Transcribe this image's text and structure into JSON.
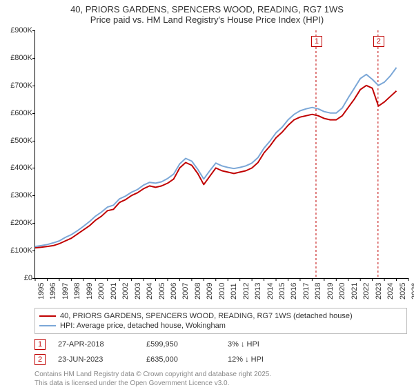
{
  "title": "40, PRIORS GARDENS, SPENCERS WOOD, READING, RG7 1WS",
  "subtitle": "Price paid vs. HM Land Registry's House Price Index (HPI)",
  "chart": {
    "type": "line",
    "background_color": "#ffffff",
    "axis_color": "#000000",
    "tick_font_size": 11,
    "title_font_size": 13,
    "xlim": [
      1995,
      2026
    ],
    "ylim": [
      0,
      900000
    ],
    "yticks": [
      0,
      100000,
      200000,
      300000,
      400000,
      500000,
      600000,
      700000,
      800000,
      900000
    ],
    "ytick_labels": [
      "£0",
      "£100K",
      "£200K",
      "£300K",
      "£400K",
      "£500K",
      "£600K",
      "£700K",
      "£800K",
      "£900K"
    ],
    "xticks": [
      1995,
      1996,
      1997,
      1998,
      1999,
      2000,
      2001,
      2002,
      2003,
      2004,
      2005,
      2006,
      2007,
      2008,
      2009,
      2010,
      2011,
      2012,
      2013,
      2014,
      2015,
      2016,
      2017,
      2018,
      2019,
      2020,
      2021,
      2022,
      2023,
      2024,
      2025,
      2026
    ],
    "series": [
      {
        "id": "price_paid",
        "label": "40, PRIORS GARDENS, SPENCERS WOOD, READING, RG7 1WS (detached house)",
        "color": "#c00000",
        "line_width": 2,
        "x": [
          1995,
          1995.5,
          1996,
          1996.5,
          1997,
          1997.5,
          1998,
          1998.5,
          1999,
          1999.5,
          2000,
          2000.5,
          2001,
          2001.5,
          2002,
          2002.5,
          2003,
          2003.5,
          2004,
          2004.5,
          2005,
          2005.5,
          2006,
          2006.5,
          2007,
          2007.5,
          2008,
          2008.5,
          2009,
          2009.5,
          2010,
          2010.5,
          2011,
          2011.5,
          2012,
          2012.5,
          2013,
          2013.5,
          2014,
          2014.5,
          2015,
          2015.5,
          2016,
          2016.5,
          2017,
          2017.5,
          2018,
          2018.5,
          2019,
          2019.5,
          2020,
          2020.5,
          2021,
          2021.5,
          2022,
          2022.5,
          2023,
          2023.5,
          2024,
          2024.5,
          2025
        ],
        "y": [
          110000,
          112000,
          115000,
          118000,
          125000,
          135000,
          145000,
          160000,
          175000,
          190000,
          210000,
          225000,
          245000,
          250000,
          275000,
          285000,
          300000,
          310000,
          325000,
          335000,
          330000,
          335000,
          345000,
          360000,
          400000,
          420000,
          410000,
          380000,
          340000,
          370000,
          400000,
          390000,
          385000,
          380000,
          385000,
          390000,
          400000,
          420000,
          455000,
          480000,
          510000,
          530000,
          555000,
          575000,
          585000,
          590000,
          595000,
          590000,
          580000,
          575000,
          575000,
          590000,
          620000,
          650000,
          685000,
          700000,
          690000,
          625000,
          640000,
          660000,
          680000
        ]
      },
      {
        "id": "hpi",
        "label": "HPI: Average price, detached house, Wokingham",
        "color": "#7ba7d7",
        "line_width": 2,
        "x": [
          1995,
          1995.5,
          1996,
          1996.5,
          1997,
          1997.5,
          1998,
          1998.5,
          1999,
          1999.5,
          2000,
          2000.5,
          2001,
          2001.5,
          2002,
          2002.5,
          2003,
          2003.5,
          2004,
          2004.5,
          2005,
          2005.5,
          2006,
          2006.5,
          2007,
          2007.5,
          2008,
          2008.5,
          2009,
          2009.5,
          2010,
          2010.5,
          2011,
          2011.5,
          2012,
          2012.5,
          2013,
          2013.5,
          2014,
          2014.5,
          2015,
          2015.5,
          2016,
          2016.5,
          2017,
          2017.5,
          2018,
          2018.5,
          2019,
          2019.5,
          2020,
          2020.5,
          2021,
          2021.5,
          2022,
          2022.5,
          2023,
          2023.5,
          2024,
          2024.5,
          2025
        ],
        "y": [
          115000,
          118000,
          122000,
          128000,
          135000,
          148000,
          158000,
          172000,
          188000,
          205000,
          225000,
          240000,
          258000,
          265000,
          288000,
          298000,
          312000,
          322000,
          338000,
          348000,
          345000,
          350000,
          362000,
          378000,
          415000,
          435000,
          425000,
          395000,
          360000,
          390000,
          418000,
          408000,
          402000,
          398000,
          402000,
          408000,
          418000,
          438000,
          472000,
          498000,
          528000,
          548000,
          575000,
          595000,
          608000,
          615000,
          620000,
          615000,
          605000,
          600000,
          600000,
          618000,
          655000,
          690000,
          725000,
          740000,
          722000,
          700000,
          712000,
          735000,
          765000
        ]
      }
    ],
    "vlines": [
      {
        "x": 2018.32,
        "color": "#c00000",
        "dash": "3,3",
        "label": "1"
      },
      {
        "x": 2023.47,
        "color": "#c00000",
        "dash": "3,3",
        "label": "2"
      }
    ]
  },
  "legend": {
    "border_color": "#bbbbbb",
    "font_size": 11
  },
  "events": [
    {
      "num": "1",
      "date": "27-APR-2018",
      "price": "£599,950",
      "delta": "3% ↓ HPI"
    },
    {
      "num": "2",
      "date": "23-JUN-2023",
      "price": "£635,000",
      "delta": "12% ↓ HPI"
    }
  ],
  "footer_line1": "Contains HM Land Registry data © Crown copyright and database right 2025.",
  "footer_line2": "This data is licensed under the Open Government Licence v3.0."
}
